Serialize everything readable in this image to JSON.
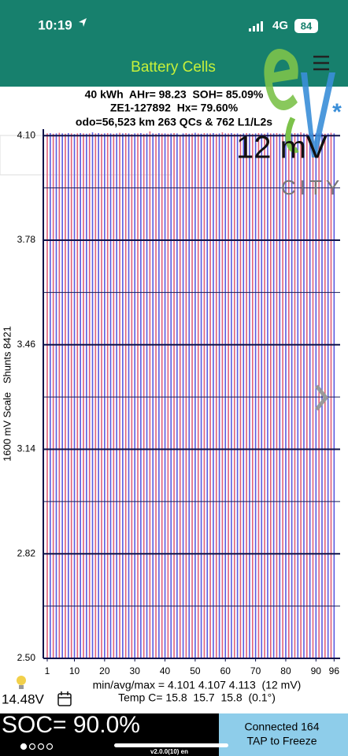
{
  "status_bar": {
    "time": "10:19",
    "network": "4G",
    "battery": "84"
  },
  "header": {
    "title": "Battery Cells"
  },
  "info": {
    "lines": [
      "40 kWh  AHr= 98.23  SOH= 85.09%",
      "ZE1-127892  Hx= 79.60%",
      "odo=56,523 km 263 QCs & 762 L1/L2s"
    ]
  },
  "overlay": {
    "scale": "12 mV",
    "logo_text": "CITY"
  },
  "chart_data": {
    "type": "bar",
    "ylabel": "1600 mV Scale   Shunts 8421",
    "x": [
      1,
      2,
      3,
      4,
      5,
      6,
      7,
      8,
      9,
      10,
      11,
      12,
      13,
      14,
      15,
      16,
      17,
      18,
      19,
      20,
      21,
      22,
      23,
      24,
      25,
      26,
      27,
      28,
      29,
      30,
      31,
      32,
      33,
      34,
      35,
      36,
      37,
      38,
      39,
      40,
      41,
      42,
      43,
      44,
      45,
      46,
      47,
      48,
      49,
      50,
      51,
      52,
      53,
      54,
      55,
      56,
      57,
      58,
      59,
      60,
      61,
      62,
      63,
      64,
      65,
      66,
      67,
      68,
      69,
      70,
      71,
      72,
      73,
      74,
      75,
      76,
      77,
      78,
      79,
      80,
      81,
      82,
      83,
      84,
      85,
      86,
      87,
      88,
      89,
      90,
      91,
      92,
      93,
      94,
      95,
      96
    ],
    "values": [
      4.107,
      4.108,
      4.106,
      4.107,
      4.109,
      4.107,
      4.106,
      4.108,
      4.107,
      4.105,
      4.107,
      4.108,
      4.107,
      4.106,
      4.107,
      4.11,
      4.107,
      4.108,
      4.106,
      4.107,
      4.108,
      4.107,
      4.106,
      4.107,
      4.109,
      4.107,
      4.108,
      4.107,
      4.105,
      4.107,
      4.107,
      4.108,
      4.106,
      4.107,
      4.113,
      4.107,
      4.106,
      4.108,
      4.107,
      4.107,
      4.106,
      4.107,
      4.108,
      4.107,
      4.101,
      4.107,
      4.108,
      4.106,
      4.107,
      4.109,
      4.107,
      4.106,
      4.108,
      4.107,
      4.107,
      4.108,
      4.106,
      4.107,
      4.11,
      4.107,
      4.107,
      4.108,
      4.106,
      4.107,
      4.105,
      4.107,
      4.108,
      4.107,
      4.106,
      4.107,
      4.108,
      4.107,
      4.106,
      4.109,
      4.107,
      4.107,
      4.108,
      4.106,
      4.107,
      4.107,
      4.106,
      4.107,
      4.108,
      4.107,
      4.11,
      4.107,
      4.106,
      4.108,
      4.107,
      4.107,
      4.108,
      4.107,
      4.106,
      4.107,
      4.109,
      4.107
    ],
    "colors": [
      "#e0607a",
      "#5a5ae0"
    ],
    "xlim": [
      -0.3,
      98
    ],
    "xticks": [
      1,
      10,
      20,
      30,
      40,
      50,
      60,
      70,
      80,
      90,
      96
    ],
    "ylim": [
      2.5,
      4.12
    ],
    "yticks": [
      {
        "value": 4.1,
        "label": "4.10"
      },
      3.78,
      3.46,
      3.14,
      2.82,
      {
        "value": 2.5,
        "label": "2.50"
      }
    ],
    "minor_yticks": [
      3.94,
      3.62,
      3.3,
      2.98,
      2.66
    ],
    "grid": true
  },
  "footer": {
    "stats": "min/avg/max = 4.101 4.107 4.113  (12 mV)",
    "temp": "Temp C= 15.8  15.7  15.8  (0.1°)",
    "voltage": "14.48V",
    "soc": "SOC= 90.0%",
    "version": "v2.0.0(10) en",
    "connection": "Connected 164",
    "action": "TAP to Freeze"
  }
}
